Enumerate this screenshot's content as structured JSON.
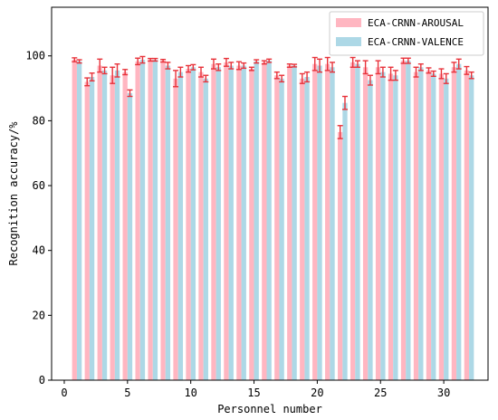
{
  "chart_data": {
    "type": "bar",
    "xlabel": "Personnel number",
    "ylabel": "Recognition accuracy/%",
    "xlim": [
      -1,
      33.5
    ],
    "ylim": [
      0,
      115
    ],
    "xticks": [
      0,
      5,
      10,
      15,
      20,
      25,
      30
    ],
    "yticks": [
      0,
      20,
      40,
      60,
      80,
      100
    ],
    "legend_position": "top-right",
    "grid": false,
    "categories": [
      1,
      2,
      3,
      4,
      5,
      6,
      7,
      8,
      9,
      10,
      11,
      12,
      13,
      14,
      15,
      16,
      17,
      18,
      19,
      20,
      21,
      22,
      23,
      24,
      25,
      26,
      27,
      28,
      29,
      30,
      31,
      32
    ],
    "series": [
      {
        "name": "ECA-CRNN-AROUSAL",
        "color": "#ffb6c1",
        "values": [
          98.8,
          92.0,
          97.0,
          94.0,
          95.0,
          98.3,
          98.8,
          98.5,
          93.0,
          96.0,
          95.0,
          97.5,
          98.0,
          97.0,
          96.0,
          98.0,
          94.0,
          97.0,
          93.0,
          97.5,
          97.5,
          76.5,
          98.0,
          96.5,
          96.5,
          94.5,
          98.5,
          95.0,
          95.5,
          94.5,
          96.5,
          95.5
        ],
        "errors": [
          0.6,
          1.2,
          2.0,
          2.5,
          0.8,
          1.0,
          0.4,
          0.4,
          2.5,
          1.0,
          1.5,
          1.5,
          1.2,
          1.2,
          0.5,
          0.5,
          1.0,
          0.5,
          1.5,
          2.0,
          2.0,
          2.0,
          1.5,
          2.0,
          2.0,
          2.0,
          0.8,
          1.5,
          0.8,
          1.5,
          1.5,
          1.2
        ]
      },
      {
        "name": "ECA-CRNN-VALENCE",
        "color": "#add8e6",
        "values": [
          98.3,
          93.5,
          95.5,
          95.5,
          88.5,
          98.8,
          98.8,
          97.0,
          95.0,
          96.5,
          93.0,
          96.5,
          97.0,
          97.0,
          98.3,
          98.5,
          93.0,
          97.0,
          93.5,
          97.0,
          96.5,
          85.5,
          97.5,
          92.5,
          95.0,
          94.0,
          98.5,
          96.5,
          94.5,
          93.0,
          97.5,
          94.0
        ],
        "errors": [
          0.5,
          1.2,
          1.0,
          2.0,
          1.0,
          1.0,
          0.4,
          1.0,
          1.5,
          0.8,
          1.0,
          1.0,
          1.0,
          0.8,
          0.5,
          0.5,
          1.0,
          0.4,
          1.5,
          2.0,
          1.5,
          2.0,
          1.0,
          1.5,
          1.5,
          1.5,
          0.8,
          1.0,
          0.8,
          1.5,
          1.5,
          1.0
        ]
      }
    ],
    "error_bar_color": "#e8323a"
  }
}
